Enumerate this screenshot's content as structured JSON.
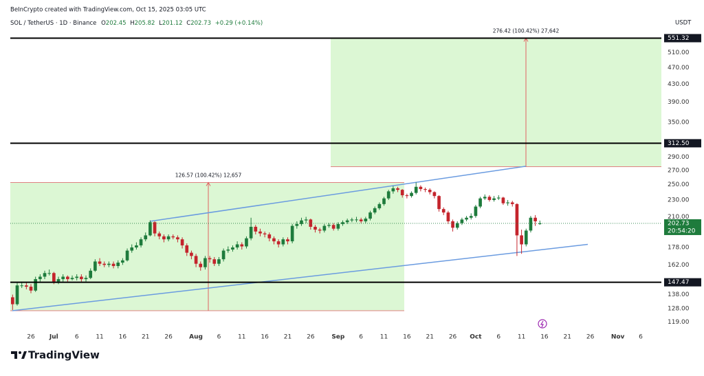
{
  "chart_data": {
    "type": "candlestick",
    "credit": "BeInCrypto created with TradingView.com, Oct 15, 2025 03:05 UTC",
    "title": "SOL / TetherUS · 1D · Binance",
    "ohlc_keys": [
      "O",
      "H",
      "L",
      "C"
    ],
    "change": "+0.29 (+0.14%)",
    "currency": "USDT",
    "countdown": "20:54:20",
    "brand": "TradingView",
    "log_scale": true,
    "up_color": "#1e7b3c",
    "down_color": "#c4242c",
    "ylim": [
      114,
      629
    ],
    "yticks": [
      {
        "value": 119,
        "label": "119.00"
      },
      {
        "value": 128,
        "label": "128.00"
      },
      {
        "value": 138,
        "label": "138.00"
      },
      {
        "value": 162,
        "label": "162.00"
      },
      {
        "value": 178,
        "label": "178.00"
      },
      {
        "value": 210,
        "label": "210.00"
      },
      {
        "value": 230,
        "label": "230.00"
      },
      {
        "value": 250,
        "label": "250.00"
      },
      {
        "value": 270,
        "label": "270.00"
      },
      {
        "value": 290,
        "label": "290.00"
      },
      {
        "value": 350,
        "label": "350.00"
      },
      {
        "value": 390,
        "label": "390.00"
      },
      {
        "value": 430,
        "label": "430.00"
      },
      {
        "value": 470,
        "label": "470.00"
      },
      {
        "value": 510,
        "label": "510.00"
      }
    ],
    "levels": [
      551.32,
      {
        "value": 312.5,
        "label": "312.50"
      },
      147.47
    ],
    "measures": [
      {
        "low": 126.5,
        "high": 252.8,
        "label": "126.57 (100.42%) 12,657"
      },
      {
        "low": 275.3,
        "high": 551.32,
        "label": "276.42 (100.42%) 27,642"
      }
    ],
    "channel": {
      "upper": [
        205,
        276
      ],
      "lower": [
        126.5,
        181
      ]
    },
    "categories": [
      null,
      null,
      null,
      null,
      "26",
      null,
      null,
      null,
      null,
      "Jul",
      null,
      null,
      null,
      null,
      "6",
      null,
      null,
      null,
      null,
      "11",
      null,
      null,
      null,
      null,
      "16",
      null,
      null,
      null,
      null,
      "21",
      null,
      null,
      null,
      null,
      "26",
      null,
      null,
      null,
      null,
      null,
      "Aug",
      null,
      null,
      null,
      null,
      "6",
      null,
      null,
      null,
      null,
      "11",
      null,
      null,
      null,
      null,
      "16",
      null,
      null,
      null,
      null,
      "21",
      null,
      null,
      null,
      null,
      "26",
      null,
      null,
      null,
      null,
      null,
      "Sep",
      null,
      null,
      null,
      null,
      "6",
      null,
      null,
      null,
      null,
      "11",
      null,
      null,
      null,
      null,
      "16",
      null,
      null,
      null,
      null,
      "21",
      null,
      null,
      null,
      null,
      "26",
      null,
      null,
      null,
      null,
      "Oct",
      null,
      null,
      null,
      null,
      "6",
      null,
      null,
      null,
      null,
      "11",
      null,
      null,
      null,
      null,
      "16",
      null,
      null,
      null,
      null,
      "21",
      null,
      null,
      null,
      null,
      "26",
      null,
      null,
      null,
      null,
      null,
      "Nov",
      null,
      null,
      null,
      null,
      "6",
      null,
      null,
      null,
      null
    ],
    "open": [
      136,
      131,
      145,
      145,
      144,
      141,
      150,
      152,
      155,
      155,
      148,
      150,
      152,
      150,
      151,
      152,
      150,
      151,
      157,
      165,
      163,
      162,
      163,
      161,
      164,
      166,
      175,
      178,
      180,
      186,
      190,
      204,
      192,
      189,
      186,
      189,
      188,
      186,
      180,
      173,
      170,
      163,
      160,
      168,
      167,
      163,
      167,
      175,
      176,
      178,
      181,
      179,
      187,
      199,
      194,
      192,
      191,
      187,
      184,
      181,
      186,
      184,
      200,
      202,
      206,
      207,
      199,
      196,
      195,
      200,
      201,
      197,
      202,
      204,
      206,
      207,
      207,
      205,
      208,
      215,
      220,
      225,
      232,
      241,
      245,
      243,
      236,
      235,
      239,
      247,
      244,
      243,
      240,
      235,
      219,
      215,
      205,
      198,
      203,
      207,
      209,
      211,
      222,
      232,
      234,
      230,
      232,
      233,
      226,
      227,
      225,
      190,
      181,
      195,
      209,
      202.45,
      null,
      null,
      null,
      null,
      null,
      null,
      null,
      null,
      null,
      null,
      null,
      null,
      null,
      null,
      null,
      null,
      null,
      null,
      null,
      null,
      null,
      null,
      null,
      null,
      null,
      null
    ],
    "high": [
      138,
      147,
      148,
      147,
      146,
      152,
      154,
      157,
      158,
      156,
      152,
      154,
      153,
      153,
      154,
      154,
      153,
      159,
      167,
      168,
      165,
      165,
      165,
      166,
      168,
      177,
      181,
      183,
      188,
      193,
      206,
      205,
      194,
      191,
      191,
      191,
      190,
      188,
      182,
      175,
      172,
      165,
      170,
      170,
      169,
      169,
      177,
      179,
      180,
      184,
      183,
      189,
      209,
      201,
      197,
      194,
      193,
      189,
      186,
      188,
      188,
      202,
      205,
      209,
      210,
      208,
      201,
      198,
      202,
      203,
      203,
      204,
      206,
      208,
      209,
      210,
      209,
      210,
      217,
      222,
      227,
      234,
      243,
      248,
      247,
      244,
      238,
      241,
      253,
      249,
      246,
      245,
      241,
      236,
      221,
      217,
      207,
      205,
      209,
      211,
      214,
      224,
      234,
      237,
      236,
      235,
      236,
      234,
      230,
      229,
      226,
      196,
      197,
      211,
      212,
      205.82,
      null,
      null,
      null,
      null,
      null,
      null,
      null,
      null,
      null,
      null,
      null,
      null,
      null,
      null,
      null,
      null,
      null,
      null,
      null,
      null,
      null,
      null,
      null,
      null,
      null,
      null
    ],
    "low": [
      127,
      130,
      143,
      142,
      139,
      140,
      148,
      150,
      153,
      146,
      146,
      148,
      148,
      149,
      149,
      148,
      148,
      150,
      156,
      161,
      160,
      160,
      159,
      159,
      162,
      165,
      173,
      176,
      178,
      184,
      189,
      189,
      186,
      183,
      184,
      186,
      183,
      177,
      170,
      167,
      160,
      157,
      158,
      164,
      161,
      161,
      165,
      173,
      174,
      176,
      176,
      177,
      185,
      191,
      189,
      188,
      184,
      181,
      178,
      179,
      181,
      182,
      197,
      200,
      203,
      196,
      193,
      192,
      193,
      198,
      195,
      195,
      200,
      202,
      204,
      204,
      203,
      203,
      206,
      213,
      218,
      223,
      230,
      238,
      240,
      233,
      232,
      233,
      237,
      241,
      240,
      237,
      232,
      216,
      212,
      202,
      194,
      196,
      201,
      205,
      207,
      209,
      220,
      230,
      228,
      228,
      230,
      224,
      223,
      222,
      170,
      172,
      179,
      193,
      200,
      201.12,
      null,
      null,
      null,
      null,
      null,
      null,
      null,
      null,
      null,
      null,
      null,
      null,
      null,
      null,
      null,
      null,
      null,
      null,
      null,
      null,
      null,
      null,
      null,
      null,
      null,
      null
    ],
    "close": [
      131,
      145,
      145,
      144,
      141,
      150,
      152,
      155,
      155,
      148,
      150,
      152,
      150,
      151,
      152,
      150,
      151,
      157,
      165,
      163,
      162,
      163,
      161,
      164,
      166,
      175,
      178,
      180,
      186,
      190,
      204,
      192,
      189,
      186,
      189,
      188,
      186,
      180,
      173,
      170,
      163,
      160,
      168,
      167,
      163,
      167,
      175,
      176,
      178,
      181,
      179,
      187,
      199,
      194,
      192,
      191,
      187,
      184,
      181,
      186,
      184,
      200,
      202,
      206,
      207,
      199,
      196,
      195,
      200,
      201,
      197,
      202,
      204,
      206,
      207,
      207,
      205,
      208,
      215,
      220,
      225,
      232,
      241,
      245,
      243,
      236,
      235,
      239,
      247,
      244,
      243,
      240,
      235,
      219,
      215,
      205,
      198,
      203,
      207,
      209,
      211,
      222,
      232,
      234,
      230,
      232,
      233,
      226,
      227,
      225,
      190,
      181,
      195,
      209,
      205,
      202.73,
      null,
      null,
      null,
      null,
      null,
      null,
      null,
      null,
      null,
      null,
      null,
      null,
      null,
      null,
      null,
      null,
      null,
      null,
      null,
      null,
      null,
      null,
      null,
      null,
      null,
      null
    ]
  }
}
